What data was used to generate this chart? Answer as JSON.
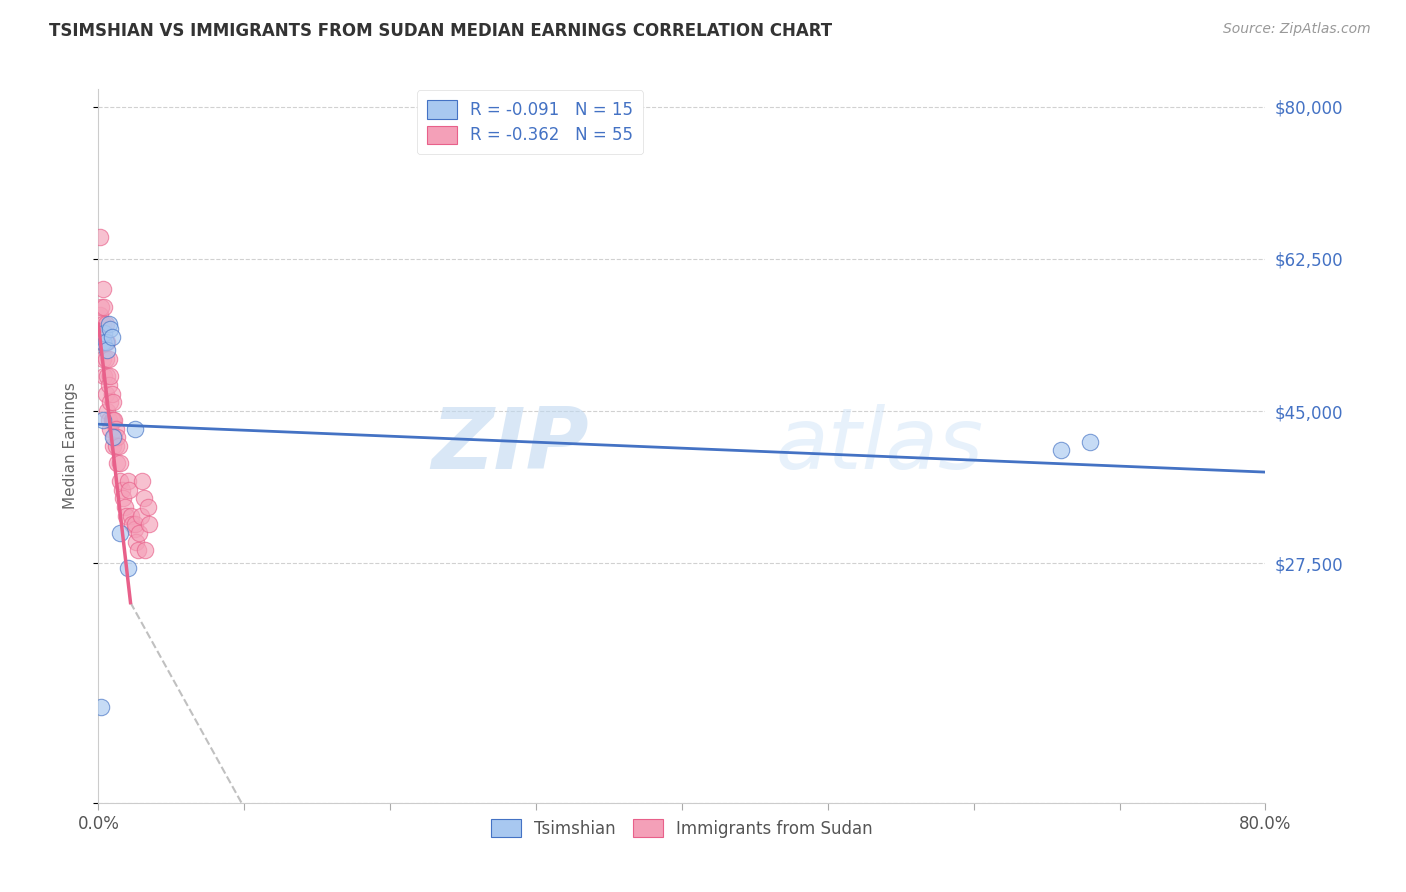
{
  "title": "TSIMSHIAN VS IMMIGRANTS FROM SUDAN MEDIAN EARNINGS CORRELATION CHART",
  "source": "Source: ZipAtlas.com",
  "ylabel": "Median Earnings",
  "yticks": [
    0,
    27500,
    45000,
    62500,
    80000
  ],
  "ytick_labels": [
    "",
    "$27,500",
    "$45,000",
    "$62,500",
    "$80,000"
  ],
  "xmin": 0.0,
  "xmax": 0.8,
  "ymin": 0,
  "ymax": 82000,
  "legend_label1": "R = -0.091   N = 15",
  "legend_label2": "R = -0.362   N = 55",
  "bottom_legend1": "Tsimshian",
  "bottom_legend2": "Immigrants from Sudan",
  "color_blue": "#A8C8F0",
  "color_pink": "#F4A0B8",
  "line_blue": "#4472C4",
  "line_pink": "#E8608A",
  "watermark_zip": "ZIP",
  "watermark_atlas": "atlas",
  "tsimshian_x": [
    0.002,
    0.003,
    0.004,
    0.005,
    0.006,
    0.007,
    0.008,
    0.009,
    0.01,
    0.015,
    0.02,
    0.025,
    0.003,
    0.66,
    0.68
  ],
  "tsimshian_y": [
    11000,
    53000,
    54000,
    53000,
    52000,
    55000,
    54500,
    53500,
    42000,
    31000,
    27000,
    43000,
    44000,
    40500,
    41500
  ],
  "sudan_x": [
    0.001,
    0.001,
    0.002,
    0.002,
    0.003,
    0.003,
    0.003,
    0.004,
    0.004,
    0.004,
    0.005,
    0.005,
    0.005,
    0.006,
    0.006,
    0.006,
    0.007,
    0.007,
    0.007,
    0.008,
    0.008,
    0.008,
    0.009,
    0.009,
    0.01,
    0.01,
    0.01,
    0.011,
    0.011,
    0.012,
    0.012,
    0.013,
    0.013,
    0.014,
    0.015,
    0.015,
    0.016,
    0.017,
    0.018,
    0.019,
    0.02,
    0.021,
    0.022,
    0.023,
    0.025,
    0.025,
    0.026,
    0.027,
    0.028,
    0.029,
    0.03,
    0.031,
    0.032,
    0.034,
    0.035
  ],
  "sudan_y": [
    65000,
    56000,
    57000,
    53000,
    59000,
    55000,
    51000,
    57000,
    53000,
    49000,
    55000,
    51000,
    47000,
    53000,
    49000,
    45000,
    51000,
    48000,
    44000,
    49000,
    46000,
    43000,
    47000,
    44000,
    46000,
    44000,
    41000,
    44000,
    42000,
    43000,
    41000,
    42000,
    39000,
    41000,
    39000,
    37000,
    36000,
    35000,
    34000,
    33000,
    37000,
    36000,
    33000,
    32000,
    31500,
    32000,
    30000,
    29000,
    31000,
    33000,
    37000,
    35000,
    29000,
    34000,
    32000
  ],
  "x_ticks_positions": [
    0.0,
    0.1,
    0.2,
    0.3,
    0.4,
    0.5,
    0.6,
    0.7,
    0.8
  ],
  "x_ticks_labels": [
    "0.0%",
    "",
    "",
    "",
    "",
    "",
    "",
    "",
    "80.0%"
  ]
}
